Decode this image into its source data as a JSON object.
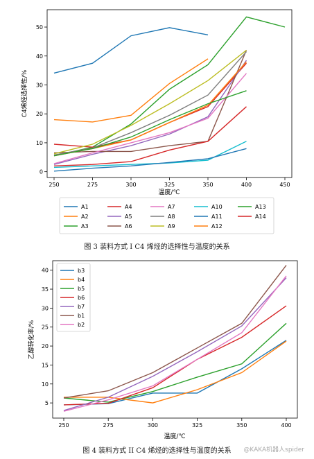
{
  "page": {
    "caption1": "图 3  装料方式 I C4 烯烃的选择性与温度的关系",
    "caption2": "图 4  装料方式 II C4 烯烃的选择性与温度的关系",
    "watermark": "@KAKA机器人spider"
  },
  "colors": {
    "c1": "#1f77b4",
    "c2": "#ff7f0e",
    "c3": "#2ca02c",
    "c4": "#d62728",
    "c5": "#9467bd",
    "c6": "#8c564b",
    "c7": "#e377c2",
    "c8": "#7f7f7f",
    "c9": "#bcbd22",
    "c10": "#17becf"
  },
  "chart_data": [
    {
      "type": "line",
      "title": "",
      "xlabel": "温度/℃",
      "ylabel": "C4烯烃选择性/%",
      "x": [
        250,
        275,
        300,
        325,
        350,
        400,
        450
      ],
      "xticks": [
        "250",
        "275",
        "300",
        "325",
        "350",
        "400",
        "450"
      ],
      "yticks": [
        0,
        10,
        20,
        30,
        40,
        50
      ],
      "ylim": [
        -2,
        56
      ],
      "legend_position": "bottom",
      "series": [
        {
          "name": "A1",
          "color": "#1f77b4",
          "points": [
            [
              250,
              34.1
            ],
            [
              275,
              37.5
            ],
            [
              300,
              47.0
            ],
            [
              325,
              49.8
            ],
            [
              350,
              47.3
            ]
          ]
        },
        {
          "name": "A2",
          "color": "#ff7f0e",
          "points": [
            [
              250,
              18.0
            ],
            [
              275,
              17.2
            ],
            [
              300,
              19.5
            ],
            [
              325,
              30.5
            ],
            [
              350,
              39.0
            ]
          ]
        },
        {
          "name": "A3",
          "color": "#2ca02c",
          "points": [
            [
              250,
              5.5
            ],
            [
              275,
              8.5
            ],
            [
              300,
              16.5
            ],
            [
              325,
              28.5
            ],
            [
              350,
              37.0
            ],
            [
              400,
              53.5
            ],
            [
              450,
              50.0
            ]
          ]
        },
        {
          "name": "A4",
          "color": "#d62728",
          "points": [
            [
              250,
              9.5
            ],
            [
              275,
              8.5
            ],
            [
              300,
              11.0
            ],
            [
              325,
              17.0
            ],
            [
              350,
              22.5
            ],
            [
              400,
              37.5
            ]
          ]
        },
        {
          "name": "A5",
          "color": "#9467bd",
          "points": [
            [
              250,
              2.5
            ],
            [
              275,
              6.0
            ],
            [
              300,
              9.0
            ],
            [
              325,
              13.0
            ],
            [
              350,
              19.0
            ],
            [
              400,
              38.5
            ]
          ]
        },
        {
          "name": "A6",
          "color": "#8c564b",
          "points": [
            [
              250,
              6.5
            ],
            [
              275,
              7.0
            ],
            [
              300,
              7.0
            ],
            [
              325,
              9.0
            ],
            [
              350,
              10.5
            ],
            [
              400,
              42.0
            ]
          ]
        },
        {
          "name": "A7",
          "color": "#e377c2",
          "points": [
            [
              250,
              2.8
            ],
            [
              275,
              6.5
            ],
            [
              300,
              10.0
            ],
            [
              325,
              13.5
            ],
            [
              350,
              18.5
            ],
            [
              400,
              34.0
            ]
          ]
        },
        {
          "name": "A8",
          "color": "#7f7f7f",
          "points": [
            [
              250,
              5.8
            ],
            [
              275,
              8.2
            ],
            [
              300,
              13.5
            ],
            [
              325,
              19.5
            ],
            [
              350,
              26.5
            ],
            [
              400,
              41.5
            ]
          ]
        },
        {
          "name": "A9",
          "color": "#bcbd22",
          "points": [
            [
              250,
              6.2
            ],
            [
              275,
              9.5
            ],
            [
              300,
              16.0
            ],
            [
              325,
              23.5
            ],
            [
              350,
              31.5
            ],
            [
              400,
              42.0
            ]
          ]
        },
        {
          "name": "A10",
          "color": "#17becf",
          "points": [
            [
              250,
              1.5
            ],
            [
              275,
              2.0
            ],
            [
              300,
              2.5
            ],
            [
              325,
              3.0
            ],
            [
              350,
              4.0
            ],
            [
              400,
              10.5
            ]
          ]
        },
        {
          "name": "A11",
          "color": "#1f77b4",
          "points": [
            [
              250,
              0.2
            ],
            [
              275,
              1.2
            ],
            [
              300,
              2.0
            ],
            [
              325,
              3.2
            ],
            [
              350,
              4.5
            ],
            [
              400,
              8.0
            ]
          ]
        },
        {
          "name": "A12",
          "color": "#ff7f0e",
          "points": [
            [
              250,
              5.5
            ],
            [
              275,
              8.0
            ],
            [
              300,
              11.0
            ],
            [
              325,
              17.0
            ],
            [
              350,
              23.0
            ],
            [
              400,
              38.0
            ]
          ]
        },
        {
          "name": "A13",
          "color": "#2ca02c",
          "points": [
            [
              250,
              5.5
            ],
            [
              275,
              8.0
            ],
            [
              300,
              12.0
            ],
            [
              325,
              18.0
            ],
            [
              350,
              23.5
            ],
            [
              400,
              28.0
            ]
          ]
        },
        {
          "name": "A14",
          "color": "#d62728",
          "points": [
            [
              250,
              2.0
            ],
            [
              275,
              2.5
            ],
            [
              300,
              3.5
            ],
            [
              325,
              7.5
            ],
            [
              350,
              10.5
            ],
            [
              400,
              22.5
            ]
          ]
        }
      ]
    },
    {
      "type": "line",
      "title": "",
      "xlabel": "温度/℃",
      "ylabel": "乙醇转化率/%",
      "x": [
        250,
        275,
        300,
        325,
        350,
        400
      ],
      "xticks": [
        "250",
        "275",
        "300",
        "325",
        "350",
        "400"
      ],
      "yticks": [
        5,
        10,
        15,
        20,
        25,
        30,
        35,
        40
      ],
      "ylim": [
        1,
        42.5
      ],
      "legend_position": "top-left",
      "series": [
        {
          "name": "b3",
          "color": "#1f77b4",
          "values": [
            4.5,
            4.8,
            7.6,
            7.6,
            14.0,
            21.5
          ]
        },
        {
          "name": "b4",
          "color": "#ff7f0e",
          "values": [
            6.5,
            6.5,
            5.0,
            8.5,
            13.0,
            21.3
          ]
        },
        {
          "name": "b5",
          "color": "#2ca02c",
          "values": [
            6.3,
            5.2,
            8.0,
            11.8,
            15.3,
            26.0
          ]
        },
        {
          "name": "b6",
          "color": "#d62728",
          "values": [
            4.5,
            4.9,
            9.0,
            16.5,
            22.3,
            30.6
          ]
        },
        {
          "name": "b7",
          "color": "#9467bd",
          "values": [
            3.0,
            6.5,
            12.0,
            18.5,
            25.3,
            38.0
          ]
        },
        {
          "name": "b1",
          "color": "#8c564b",
          "values": [
            6.3,
            8.2,
            13.0,
            19.5,
            26.0,
            41.3
          ]
        },
        {
          "name": "b2",
          "color": "#e377c2",
          "values": [
            2.8,
            5.8,
            9.5,
            16.5,
            23.5,
            38.5
          ]
        }
      ]
    }
  ]
}
